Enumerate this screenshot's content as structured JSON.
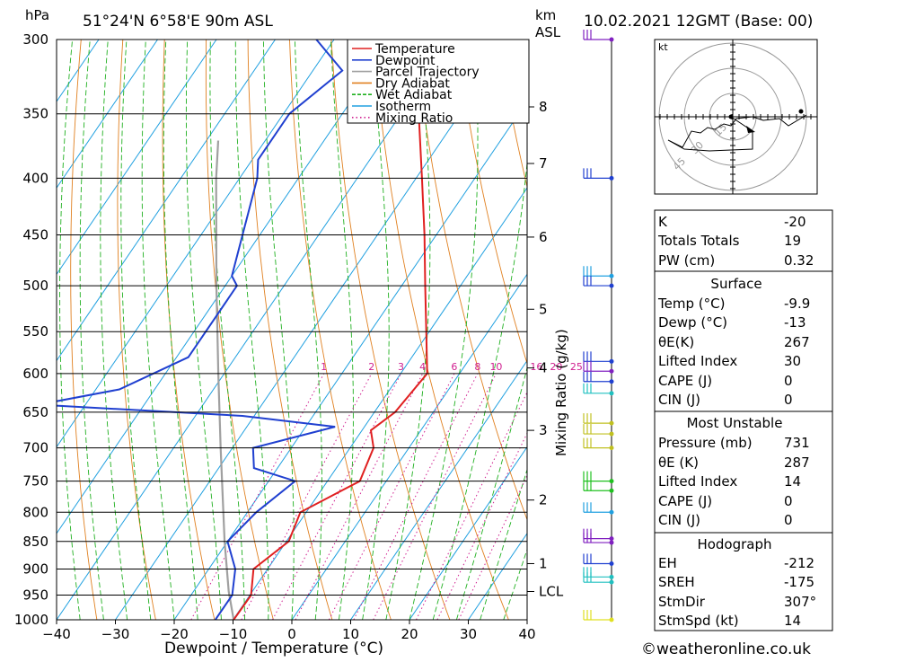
{
  "header": {
    "pressure_unit": "hPa",
    "location": "51°24'N  6°58'E  90m  ASL",
    "km_unit": "km",
    "asl_unit": "ASL",
    "datetime": "10.02.2021  12GMT  (Base: 00)"
  },
  "chart_data": {
    "type": "skew-t",
    "xlabel": "Dewpoint / Temperature (°C)",
    "ylabel_right": "Mixing Ratio (g/kg)",
    "x_ticks": [
      -40,
      -30,
      -20,
      -10,
      0,
      10,
      20,
      30,
      40
    ],
    "pressure_levels": [
      300,
      350,
      400,
      450,
      500,
      550,
      600,
      650,
      700,
      750,
      800,
      850,
      900,
      950,
      1000
    ],
    "km_ticks": [
      {
        "label": "8",
        "p": 345
      },
      {
        "label": "7",
        "p": 388
      },
      {
        "label": "6",
        "p": 452
      },
      {
        "label": "5",
        "p": 525
      },
      {
        "label": "4",
        "p": 593
      },
      {
        "label": "3",
        "p": 675
      },
      {
        "label": "2",
        "p": 780
      },
      {
        "label": "1",
        "p": 890
      },
      {
        "label": "LCL",
        "p": 943
      }
    ],
    "mixing_ratio_labels": [
      "1",
      "2",
      "3",
      "4",
      "6",
      "8",
      "10",
      "16",
      "20",
      "25"
    ],
    "mixing_ratio_values": [
      1,
      2,
      3,
      4,
      6,
      8,
      10,
      16,
      20,
      25
    ],
    "legend": [
      {
        "name": "Temperature",
        "color": "#e02020",
        "style": "solid"
      },
      {
        "name": "Dewpoint",
        "color": "#2040d0",
        "style": "solid"
      },
      {
        "name": "Parcel Trajectory",
        "color": "#a0a0a0",
        "style": "solid"
      },
      {
        "name": "Dry Adiabat",
        "color": "#e08020",
        "style": "solid"
      },
      {
        "name": "Wet Adiabat",
        "color": "#20b020",
        "style": "dash"
      },
      {
        "name": "Isotherm",
        "color": "#20a0e0",
        "style": "solid"
      },
      {
        "name": "Mixing Ratio",
        "color": "#d02090",
        "style": "dot"
      }
    ],
    "temperature": [
      {
        "p": 1000,
        "t": -9.9
      },
      {
        "p": 950,
        "t": -9.8
      },
      {
        "p": 900,
        "t": -12.4
      },
      {
        "p": 850,
        "t": -9.6
      },
      {
        "p": 800,
        "t": -11.0
      },
      {
        "p": 750,
        "t": -4.5
      },
      {
        "p": 700,
        "t": -6.0
      },
      {
        "p": 675,
        "t": -8.5
      },
      {
        "p": 650,
        "t": -6.5
      },
      {
        "p": 600,
        "t": -5.5
      },
      {
        "p": 550,
        "t": -10.5
      },
      {
        "p": 500,
        "t": -16.0
      },
      {
        "p": 450,
        "t": -22.0
      },
      {
        "p": 400,
        "t": -29.0
      },
      {
        "p": 350,
        "t": -37.0
      },
      {
        "p": 300,
        "t": -46.0
      }
    ],
    "dewpoint": [
      {
        "p": 1000,
        "t": -13.0
      },
      {
        "p": 950,
        "t": -13.0
      },
      {
        "p": 900,
        "t": -15.5
      },
      {
        "p": 850,
        "t": -20.0
      },
      {
        "p": 800,
        "t": -18.5
      },
      {
        "p": 750,
        "t": -15.5
      },
      {
        "p": 730,
        "t": -24.0
      },
      {
        "p": 700,
        "t": -26.5
      },
      {
        "p": 670,
        "t": -15.0
      },
      {
        "p": 655,
        "t": -32.0
      },
      {
        "p": 640,
        "t": -68.0
      },
      {
        "p": 620,
        "t": -56.0
      },
      {
        "p": 580,
        "t": -48.0
      },
      {
        "p": 500,
        "t": -48.0
      },
      {
        "p": 490,
        "t": -50.0
      },
      {
        "p": 400,
        "t": -57.0
      },
      {
        "p": 385,
        "t": -59.0
      },
      {
        "p": 350,
        "t": -59.0
      },
      {
        "p": 320,
        "t": -55.0
      },
      {
        "p": 300,
        "t": -63.0
      }
    ],
    "parcel": [
      {
        "p": 1000,
        "t": -9.9
      },
      {
        "p": 943,
        "t": -14.0
      },
      {
        "p": 850,
        "t": -20.5
      },
      {
        "p": 700,
        "t": -32.0
      },
      {
        "p": 600,
        "t": -41.0
      },
      {
        "p": 500,
        "t": -51.5
      },
      {
        "p": 400,
        "t": -64.0
      },
      {
        "p": 370,
        "t": -68.0
      }
    ],
    "wind_markers": [
      {
        "p": 300,
        "color": "#8020c0"
      },
      {
        "p": 400,
        "color": "#2040d0"
      },
      {
        "p": 490,
        "color": "#20a0e0"
      },
      {
        "p": 500,
        "color": "#2040d0"
      },
      {
        "p": 585,
        "color": "#2040d0"
      },
      {
        "p": 597,
        "color": "#8020c0"
      },
      {
        "p": 610,
        "color": "#2040d0"
      },
      {
        "p": 625,
        "color": "#20c0c0"
      },
      {
        "p": 665,
        "color": "#c0c020"
      },
      {
        "p": 680,
        "color": "#c0c020"
      },
      {
        "p": 700,
        "color": "#c0c020"
      },
      {
        "p": 750,
        "color": "#20c020"
      },
      {
        "p": 765,
        "color": "#20c020"
      },
      {
        "p": 800,
        "color": "#20a0e0"
      },
      {
        "p": 845,
        "color": "#8020c0"
      },
      {
        "p": 852,
        "color": "#8020c0"
      },
      {
        "p": 890,
        "color": "#2040d0"
      },
      {
        "p": 915,
        "color": "#20c0c0"
      },
      {
        "p": 925,
        "color": "#20c0c0"
      },
      {
        "p": 1000,
        "color": "#e0e020"
      }
    ],
    "hodograph": {
      "unit_label": "kt",
      "ring_labels": [
        "15",
        "30",
        "45"
      ]
    }
  },
  "stats": {
    "k_label": "K",
    "k_value": "-20",
    "tt_label": "Totals Totals",
    "tt_value": "19",
    "pw_label": "PW (cm)",
    "pw_value": "0.32",
    "surface": {
      "title": "Surface",
      "temp_label": "Temp (°C)",
      "temp_value": "-9.9",
      "dewp_label": "Dewp (°C)",
      "dewp_value": "-13",
      "theta_label": "θE(K)",
      "theta_value": "267",
      "li_label": "Lifted Index",
      "li_value": "30",
      "cape_label": "CAPE (J)",
      "cape_value": "0",
      "cin_label": "CIN (J)",
      "cin_value": "0"
    },
    "most_unstable": {
      "title": "Most Unstable",
      "pres_label": "Pressure (mb)",
      "pres_value": "731",
      "theta_label": "θE (K)",
      "theta_value": "287",
      "li_label": "Lifted Index",
      "li_value": "14",
      "cape_label": "CAPE (J)",
      "cape_value": "0",
      "cin_label": "CIN (J)",
      "cin_value": "0"
    },
    "hodograph": {
      "title": "Hodograph",
      "eh_label": "EH",
      "eh_value": "-212",
      "sreh_label": "SREH",
      "sreh_value": "-175",
      "stmdir_label": "StmDir",
      "stmdir_value": "307°",
      "stmspd_label": "StmSpd (kt)",
      "stmspd_value": "14"
    }
  },
  "footer": {
    "copyright": "©weatheronline.co.uk"
  }
}
